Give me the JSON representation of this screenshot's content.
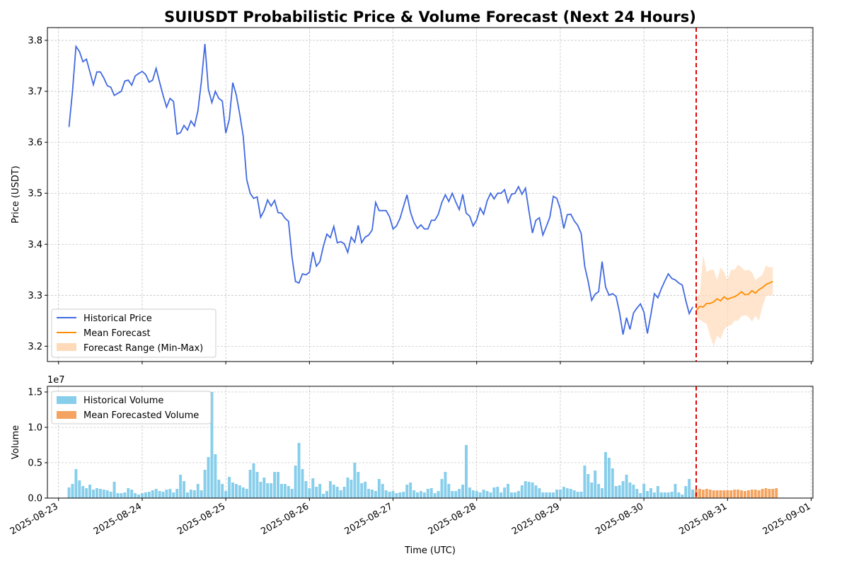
{
  "figure": {
    "title": "SUIUSDT Probabilistic Price & Volume Forecast (Next 24 Hours)",
    "xlabel": "Time (UTC)"
  },
  "colors": {
    "historical_price": "#4169e1",
    "mean_forecast": "#ff8c00",
    "forecast_range": "#ffdab9",
    "historical_volume": "#87ceeb",
    "forecast_volume": "#f4a460",
    "forecast_start_line": "#e00000",
    "grid": "#b0b0b0"
  },
  "chart_data": [
    {
      "type": "line",
      "title": "SUIUSDT Probabilistic Price & Volume Forecast (Next 24 Hours)",
      "xlabel": "",
      "ylabel": "Price (USDT)",
      "x_unit": "hours since 2025-08-23 00:00 UTC",
      "xlim": [
        -3.2,
        216.5
      ],
      "ylim": [
        3.17,
        3.825
      ],
      "y_ticks": [
        3.2,
        3.3,
        3.4,
        3.5,
        3.6,
        3.7,
        3.8
      ],
      "y_tick_labels": [
        "3.2",
        "3.3",
        "3.4",
        "3.5",
        "3.6",
        "3.7",
        "3.8"
      ],
      "x_tick_hours": [
        0,
        24,
        48,
        72,
        96,
        120,
        144,
        168,
        192,
        216
      ],
      "x_tick_labels": [
        "2025-08-23",
        "2025-08-24",
        "2025-08-25",
        "2025-08-26",
        "2025-08-27",
        "2025-08-28",
        "2025-08-29",
        "2025-08-30",
        "2025-08-31",
        "2025-09-01"
      ],
      "grid": true,
      "legend_position": "lower-left",
      "forecast_start_hour": 183,
      "series": [
        {
          "name": "Historical Price",
          "x_start": 3,
          "x_step": 1,
          "values": [
            3.63,
            3.7,
            3.788,
            3.778,
            3.758,
            3.763,
            3.738,
            3.713,
            3.738,
            3.738,
            3.726,
            3.711,
            3.708,
            3.692,
            3.696,
            3.7,
            3.72,
            3.722,
            3.712,
            3.73,
            3.735,
            3.739,
            3.733,
            3.718,
            3.722,
            3.745,
            3.718,
            3.692,
            3.669,
            3.686,
            3.68,
            3.616,
            3.619,
            3.633,
            3.624,
            3.642,
            3.632,
            3.662,
            3.72,
            3.793,
            3.704,
            3.678,
            3.7,
            3.686,
            3.681,
            3.618,
            3.645,
            3.717,
            3.693,
            3.655,
            3.612,
            3.527,
            3.5,
            3.49,
            3.493,
            3.453,
            3.466,
            3.487,
            3.475,
            3.486,
            3.462,
            3.461,
            3.451,
            3.445,
            3.375,
            3.327,
            3.324,
            3.342,
            3.34,
            3.345,
            3.385,
            3.357,
            3.366,
            3.396,
            3.42,
            3.413,
            3.435,
            3.403,
            3.405,
            3.401,
            3.384,
            3.414,
            3.404,
            3.437,
            3.403,
            3.414,
            3.418,
            3.428,
            3.482,
            3.466,
            3.466,
            3.466,
            3.454,
            3.43,
            3.436,
            3.451,
            3.474,
            3.497,
            3.463,
            3.443,
            3.431,
            3.438,
            3.43,
            3.43,
            3.447,
            3.447,
            3.459,
            3.482,
            3.497,
            3.484,
            3.5,
            3.483,
            3.468,
            3.498,
            3.461,
            3.455,
            3.436,
            3.448,
            3.471,
            3.459,
            3.485,
            3.5,
            3.489,
            3.5,
            3.5,
            3.507,
            3.482,
            3.498,
            3.5,
            3.513,
            3.498,
            3.51,
            3.465,
            3.422,
            3.447,
            3.452,
            3.418,
            3.435,
            3.453,
            3.494,
            3.49,
            3.469,
            3.431,
            3.458,
            3.459,
            3.446,
            3.437,
            3.421,
            3.357,
            3.327,
            3.29,
            3.302,
            3.307,
            3.366,
            3.316,
            3.3,
            3.303,
            3.298,
            3.266,
            3.223,
            3.256,
            3.233,
            3.265,
            3.275,
            3.283,
            3.267,
            3.225,
            3.262,
            3.303,
            3.295,
            3.313,
            3.328,
            3.342,
            3.333,
            3.33,
            3.324,
            3.32,
            3.29,
            3.264,
            3.277
          ]
        },
        {
          "name": "Mean Forecast",
          "x_start": 183,
          "x_step": 1,
          "values": [
            3.27,
            3.278,
            3.277,
            3.284,
            3.284,
            3.287,
            3.293,
            3.289,
            3.297,
            3.292,
            3.295,
            3.297,
            3.301,
            3.307,
            3.301,
            3.302,
            3.309,
            3.304,
            3.311,
            3.315,
            3.321,
            3.324,
            3.327
          ],
          "min": [
            3.257,
            3.252,
            3.247,
            3.244,
            3.22,
            3.2,
            3.221,
            3.214,
            3.232,
            3.24,
            3.241,
            3.25,
            3.25,
            3.259,
            3.261,
            3.258,
            3.248,
            3.26,
            3.25,
            3.277,
            3.298,
            3.3,
            3.3
          ],
          "max": [
            3.295,
            3.302,
            3.38,
            3.345,
            3.35,
            3.35,
            3.33,
            3.355,
            3.345,
            3.33,
            3.35,
            3.35,
            3.36,
            3.355,
            3.348,
            3.35,
            3.345,
            3.33,
            3.335,
            3.34,
            3.358,
            3.355,
            3.355
          ]
        }
      ],
      "legend": [
        "Historical Price",
        "Mean Forecast",
        "Forecast Range (Min-Max)"
      ]
    },
    {
      "type": "bar",
      "title": "",
      "xlabel": "Time (UTC)",
      "ylabel": "Volume",
      "y_offset_label": "1e7",
      "ylim": [
        0,
        15800000.0
      ],
      "y_ticks": [
        0,
        5000000,
        10000000,
        15000000
      ],
      "y_tick_labels": [
        "0.0",
        "0.5",
        "1.0",
        "1.5"
      ],
      "grid": true,
      "legend_position": "upper-left",
      "forecast_start_hour": 183,
      "series": [
        {
          "name": "Historical Volume",
          "x_start": 3,
          "x_step": 1,
          "values": [
            1500000,
            2000000,
            4100000,
            2500000,
            1700000,
            1400000,
            1900000,
            1200000,
            1400000,
            1300000,
            1200000,
            1100000,
            900000,
            2300000,
            700000,
            700000,
            800000,
            1400000,
            1200000,
            700000,
            500000,
            700000,
            800000,
            900000,
            1100000,
            1300000,
            1000000,
            900000,
            1200000,
            1300000,
            800000,
            1300000,
            3300000,
            2400000,
            800000,
            1200000,
            1100000,
            2000000,
            1100000,
            4000000,
            5800000,
            15000000,
            6200000,
            2600000,
            2000000,
            1000000,
            3000000,
            2200000,
            2000000,
            1800000,
            1500000,
            1300000,
            4000000,
            4900000,
            3700000,
            2300000,
            2900000,
            2100000,
            2100000,
            3700000,
            3700000,
            2000000,
            2000000,
            1700000,
            1300000,
            4600000,
            7800000,
            4100000,
            2400000,
            1400000,
            2800000,
            1600000,
            2000000,
            600000,
            1000000,
            2400000,
            1900000,
            1600000,
            1100000,
            1600000,
            2900000,
            2600000,
            5000000,
            3700000,
            2100000,
            2300000,
            1300000,
            1200000,
            1000000,
            2700000,
            2000000,
            1100000,
            900000,
            1000000,
            700000,
            800000,
            900000,
            1900000,
            2200000,
            1100000,
            800000,
            1000000,
            800000,
            1300000,
            1400000,
            700000,
            1000000,
            2700000,
            3700000,
            2000000,
            1000000,
            1000000,
            1300000,
            1900000,
            7500000,
            1500000,
            1100000,
            1000000,
            800000,
            1200000,
            1000000,
            800000,
            1500000,
            1600000,
            800000,
            1500000,
            2000000,
            800000,
            800000,
            1000000,
            1800000,
            2400000,
            2300000,
            2200000,
            1800000,
            1400000,
            800000,
            800000,
            800000,
            800000,
            1200000,
            1200000,
            1600000,
            1400000,
            1300000,
            1100000,
            900000,
            900000,
            4600000,
            3400000,
            2200000,
            3900000,
            2000000,
            1400000,
            6500000,
            5700000,
            4200000,
            1700000,
            1800000,
            2400000,
            3300000,
            2200000,
            1900000,
            1300000,
            700000,
            2000000,
            1000000,
            1400000,
            800000,
            1700000,
            800000,
            800000,
            800000,
            900000,
            2000000,
            800000,
            500000,
            1700000,
            2700000,
            1200000
          ]
        },
        {
          "name": "Mean Forecasted Volume",
          "x_start": 183,
          "x_step": 1,
          "values": [
            1200000,
            1300000,
            1200000,
            1300000,
            1200000,
            1100000,
            1100000,
            1100000,
            1100000,
            1100000,
            1100000,
            1200000,
            1200000,
            1100000,
            1000000,
            1100000,
            1200000,
            1200000,
            1100000,
            1300000,
            1400000,
            1300000,
            1300000,
            1400000
          ]
        }
      ],
      "legend": [
        "Historical Volume",
        "Mean Forecasted Volume"
      ]
    }
  ]
}
